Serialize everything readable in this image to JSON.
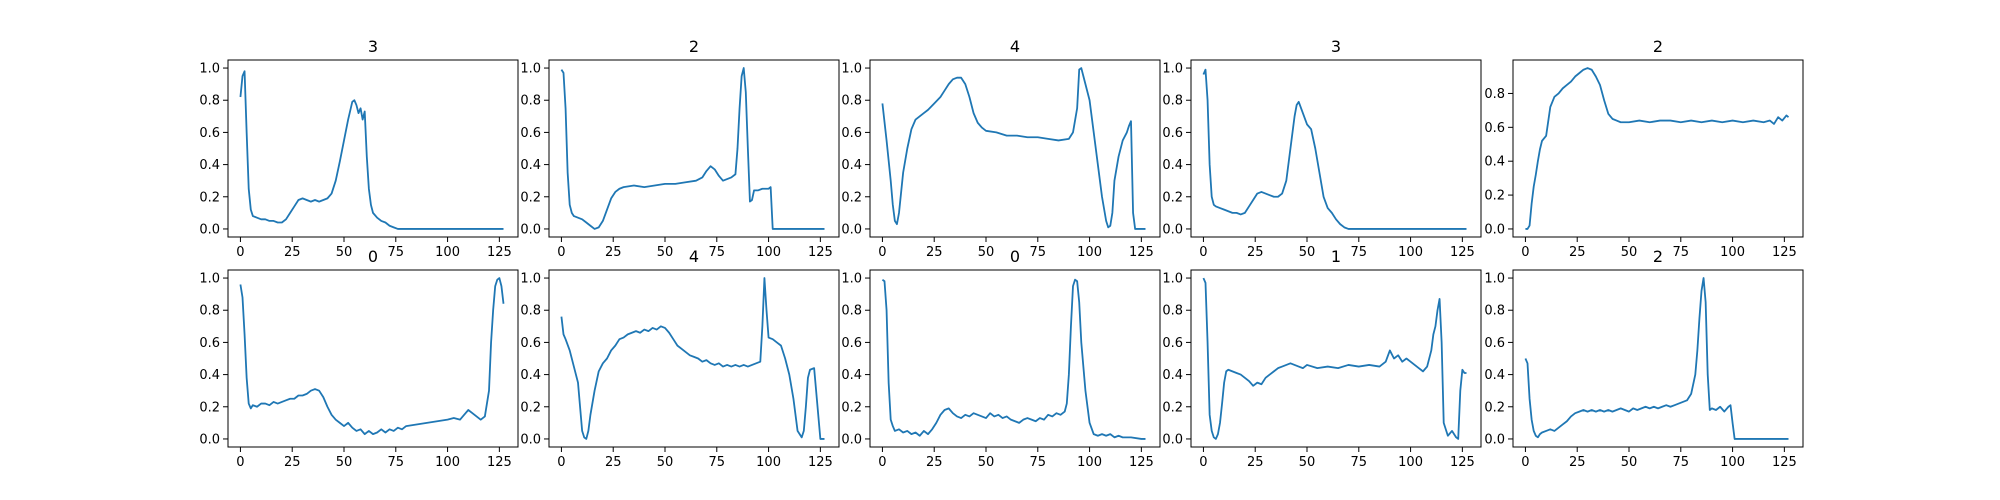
{
  "figure": {
    "background": "#ffffff",
    "line_color": "#1f77b4",
    "axis_color": "#000000"
  },
  "chart_data": [
    {
      "type": "line",
      "title": "3",
      "xlabel": "",
      "ylabel": "",
      "xlim": [
        -6,
        134
      ],
      "ylim": [
        -0.05,
        1.05
      ],
      "xticks": [
        0,
        25,
        50,
        75,
        100,
        125
      ],
      "yticks": [
        0.0,
        0.2,
        0.4,
        0.6,
        0.8,
        1.0
      ],
      "grid": false,
      "x": [
        0,
        1,
        2,
        3,
        4,
        5,
        6,
        8,
        10,
        12,
        14,
        16,
        18,
        20,
        22,
        24,
        26,
        28,
        30,
        32,
        34,
        36,
        38,
        40,
        42,
        44,
        46,
        48,
        50,
        52,
        54,
        55,
        56,
        57,
        58,
        59,
        60,
        61,
        62,
        63,
        64,
        66,
        68,
        70,
        72,
        74,
        76,
        80,
        90,
        100,
        110,
        120,
        127
      ],
      "y": [
        0.82,
        0.95,
        0.98,
        0.6,
        0.25,
        0.12,
        0.08,
        0.07,
        0.06,
        0.06,
        0.05,
        0.05,
        0.04,
        0.04,
        0.06,
        0.1,
        0.14,
        0.18,
        0.19,
        0.18,
        0.17,
        0.18,
        0.17,
        0.18,
        0.19,
        0.22,
        0.3,
        0.42,
        0.55,
        0.68,
        0.79,
        0.8,
        0.77,
        0.72,
        0.75,
        0.68,
        0.73,
        0.45,
        0.25,
        0.15,
        0.1,
        0.07,
        0.05,
        0.04,
        0.02,
        0.01,
        0.0,
        0.0,
        0.0,
        0.0,
        0.0,
        0.0,
        0.0
      ]
    },
    {
      "type": "line",
      "title": "2",
      "xlabel": "",
      "ylabel": "",
      "xlim": [
        -6,
        134
      ],
      "ylim": [
        -0.05,
        1.05
      ],
      "xticks": [
        0,
        25,
        50,
        75,
        100,
        125
      ],
      "yticks": [
        0.0,
        0.2,
        0.4,
        0.6,
        0.8,
        1.0
      ],
      "grid": false,
      "x": [
        0,
        1,
        2,
        3,
        4,
        5,
        6,
        8,
        10,
        12,
        14,
        16,
        18,
        20,
        22,
        24,
        26,
        28,
        30,
        35,
        40,
        45,
        50,
        55,
        60,
        65,
        68,
        70,
        72,
        74,
        76,
        78,
        80,
        82,
        84,
        85,
        86,
        87,
        88,
        89,
        90,
        91,
        92,
        93,
        95,
        97,
        100,
        101,
        102,
        103,
        110,
        120,
        127
      ],
      "y": [
        0.99,
        0.97,
        0.75,
        0.35,
        0.15,
        0.1,
        0.08,
        0.07,
        0.06,
        0.04,
        0.02,
        0.0,
        0.01,
        0.05,
        0.12,
        0.19,
        0.23,
        0.25,
        0.26,
        0.27,
        0.26,
        0.27,
        0.28,
        0.28,
        0.29,
        0.3,
        0.32,
        0.36,
        0.39,
        0.37,
        0.33,
        0.3,
        0.31,
        0.32,
        0.34,
        0.5,
        0.75,
        0.95,
        1.0,
        0.85,
        0.5,
        0.17,
        0.18,
        0.24,
        0.24,
        0.25,
        0.25,
        0.26,
        0.0,
        0.0,
        0.0,
        0.0,
        0.0
      ]
    },
    {
      "type": "line",
      "title": "4",
      "xlabel": "",
      "ylabel": "",
      "xlim": [
        -6,
        134
      ],
      "ylim": [
        -0.05,
        1.05
      ],
      "xticks": [
        0,
        25,
        50,
        75,
        100,
        125
      ],
      "yticks": [
        0.0,
        0.2,
        0.4,
        0.6,
        0.8,
        1.0
      ],
      "grid": false,
      "x": [
        0,
        2,
        4,
        5,
        6,
        7,
        8,
        10,
        12,
        14,
        16,
        18,
        20,
        22,
        25,
        28,
        30,
        32,
        34,
        36,
        38,
        40,
        42,
        44,
        46,
        48,
        50,
        55,
        60,
        65,
        70,
        75,
        80,
        85,
        90,
        92,
        94,
        95,
        96,
        97,
        98,
        100,
        102,
        104,
        106,
        108,
        109,
        110,
        111,
        112,
        114,
        116,
        118,
        119,
        120,
        121,
        122,
        125,
        127
      ],
      "y": [
        0.78,
        0.55,
        0.3,
        0.15,
        0.05,
        0.03,
        0.1,
        0.35,
        0.5,
        0.62,
        0.68,
        0.7,
        0.72,
        0.74,
        0.78,
        0.82,
        0.86,
        0.9,
        0.93,
        0.94,
        0.94,
        0.9,
        0.82,
        0.72,
        0.66,
        0.63,
        0.61,
        0.6,
        0.58,
        0.58,
        0.57,
        0.57,
        0.56,
        0.55,
        0.56,
        0.6,
        0.75,
        0.99,
        1.0,
        0.95,
        0.9,
        0.8,
        0.6,
        0.4,
        0.2,
        0.05,
        0.01,
        0.02,
        0.1,
        0.3,
        0.45,
        0.55,
        0.6,
        0.64,
        0.67,
        0.1,
        0.0,
        0.0,
        0.0
      ]
    },
    {
      "type": "line",
      "title": "3",
      "xlabel": "",
      "ylabel": "",
      "xlim": [
        -6,
        134
      ],
      "ylim": [
        -0.05,
        1.05
      ],
      "xticks": [
        0,
        25,
        50,
        75,
        100,
        125
      ],
      "yticks": [
        0.0,
        0.2,
        0.4,
        0.6,
        0.8,
        1.0
      ],
      "grid": false,
      "x": [
        0,
        1,
        2,
        3,
        4,
        5,
        6,
        8,
        10,
        12,
        14,
        16,
        18,
        20,
        22,
        24,
        26,
        28,
        30,
        32,
        34,
        36,
        38,
        40,
        42,
        44,
        45,
        46,
        48,
        50,
        52,
        54,
        56,
        58,
        60,
        62,
        64,
        66,
        68,
        70,
        80,
        100,
        127
      ],
      "y": [
        0.96,
        0.99,
        0.8,
        0.4,
        0.2,
        0.15,
        0.14,
        0.13,
        0.12,
        0.11,
        0.1,
        0.1,
        0.09,
        0.1,
        0.14,
        0.18,
        0.22,
        0.23,
        0.22,
        0.21,
        0.2,
        0.2,
        0.22,
        0.3,
        0.5,
        0.7,
        0.77,
        0.79,
        0.72,
        0.65,
        0.62,
        0.5,
        0.35,
        0.2,
        0.13,
        0.1,
        0.06,
        0.03,
        0.01,
        0.0,
        0.0,
        0.0,
        0.0
      ]
    },
    {
      "type": "line",
      "title": "2",
      "xlabel": "",
      "ylabel": "",
      "xlim": [
        -6,
        134
      ],
      "ylim": [
        -0.0475,
        0.9975
      ],
      "xticks": [
        0,
        25,
        50,
        75,
        100,
        125
      ],
      "yticks": [
        0.0,
        0.2,
        0.4,
        0.6,
        0.8
      ],
      "grid": false,
      "x": [
        0,
        1,
        2,
        3,
        4,
        5,
        6,
        7,
        8,
        10,
        12,
        14,
        16,
        18,
        20,
        22,
        24,
        26,
        28,
        30,
        32,
        34,
        36,
        38,
        40,
        42,
        44,
        46,
        50,
        55,
        60,
        65,
        70,
        75,
        80,
        85,
        90,
        95,
        100,
        105,
        110,
        115,
        118,
        120,
        122,
        124,
        126,
        127
      ],
      "y": [
        0.0,
        0.0,
        0.02,
        0.15,
        0.25,
        0.32,
        0.4,
        0.47,
        0.52,
        0.55,
        0.72,
        0.78,
        0.8,
        0.83,
        0.85,
        0.87,
        0.9,
        0.92,
        0.94,
        0.95,
        0.94,
        0.9,
        0.85,
        0.76,
        0.68,
        0.65,
        0.64,
        0.63,
        0.63,
        0.64,
        0.63,
        0.64,
        0.64,
        0.63,
        0.64,
        0.63,
        0.64,
        0.63,
        0.64,
        0.63,
        0.64,
        0.63,
        0.64,
        0.62,
        0.66,
        0.64,
        0.67,
        0.66
      ]
    },
    {
      "type": "line",
      "title": "0",
      "xlabel": "",
      "ylabel": "",
      "xlim": [
        -6,
        134
      ],
      "ylim": [
        -0.05,
        1.05
      ],
      "xticks": [
        0,
        25,
        50,
        75,
        100,
        125
      ],
      "yticks": [
        0.0,
        0.2,
        0.4,
        0.6,
        0.8,
        1.0
      ],
      "grid": false,
      "x": [
        0,
        1,
        2,
        3,
        4,
        5,
        6,
        8,
        10,
        12,
        14,
        16,
        18,
        20,
        22,
        24,
        26,
        28,
        30,
        32,
        34,
        36,
        38,
        40,
        42,
        44,
        46,
        48,
        50,
        52,
        54,
        56,
        58,
        60,
        62,
        64,
        66,
        68,
        70,
        72,
        74,
        76,
        78,
        80,
        85,
        90,
        95,
        100,
        103,
        106,
        108,
        110,
        112,
        114,
        116,
        118,
        120,
        121,
        122,
        123,
        124,
        125,
        126,
        127
      ],
      "y": [
        0.96,
        0.88,
        0.65,
        0.38,
        0.22,
        0.19,
        0.21,
        0.2,
        0.22,
        0.22,
        0.21,
        0.23,
        0.22,
        0.23,
        0.24,
        0.25,
        0.25,
        0.27,
        0.27,
        0.28,
        0.3,
        0.31,
        0.3,
        0.26,
        0.2,
        0.15,
        0.12,
        0.1,
        0.08,
        0.1,
        0.07,
        0.05,
        0.06,
        0.03,
        0.05,
        0.03,
        0.04,
        0.06,
        0.04,
        0.06,
        0.05,
        0.07,
        0.06,
        0.08,
        0.09,
        0.1,
        0.11,
        0.12,
        0.13,
        0.12,
        0.15,
        0.18,
        0.16,
        0.14,
        0.12,
        0.14,
        0.3,
        0.6,
        0.8,
        0.95,
        0.99,
        1.0,
        0.95,
        0.84
      ]
    },
    {
      "type": "line",
      "title": "4",
      "xlabel": "",
      "ylabel": "",
      "xlim": [
        -6,
        134
      ],
      "ylim": [
        -0.05,
        1.05
      ],
      "xticks": [
        0,
        25,
        50,
        75,
        100,
        125
      ],
      "yticks": [
        0.0,
        0.2,
        0.4,
        0.6,
        0.8,
        1.0
      ],
      "grid": false,
      "x": [
        0,
        1,
        2,
        4,
        6,
        8,
        9,
        10,
        11,
        12,
        13,
        14,
        16,
        18,
        20,
        22,
        24,
        26,
        28,
        30,
        32,
        34,
        36,
        38,
        40,
        42,
        44,
        46,
        48,
        50,
        52,
        54,
        56,
        58,
        60,
        62,
        64,
        66,
        68,
        70,
        72,
        74,
        76,
        78,
        80,
        82,
        84,
        86,
        88,
        90,
        92,
        94,
        96,
        97,
        98,
        99,
        100,
        102,
        104,
        106,
        108,
        110,
        112,
        114,
        116,
        117,
        118,
        119,
        120,
        122,
        125,
        127
      ],
      "y": [
        0.76,
        0.65,
        0.62,
        0.55,
        0.45,
        0.35,
        0.2,
        0.05,
        0.01,
        0.0,
        0.05,
        0.15,
        0.3,
        0.42,
        0.47,
        0.5,
        0.55,
        0.58,
        0.62,
        0.63,
        0.65,
        0.66,
        0.67,
        0.66,
        0.68,
        0.67,
        0.69,
        0.68,
        0.7,
        0.69,
        0.66,
        0.62,
        0.58,
        0.56,
        0.54,
        0.52,
        0.51,
        0.5,
        0.48,
        0.49,
        0.47,
        0.46,
        0.47,
        0.45,
        0.46,
        0.45,
        0.46,
        0.45,
        0.46,
        0.45,
        0.46,
        0.47,
        0.48,
        0.7,
        1.0,
        0.8,
        0.63,
        0.62,
        0.6,
        0.58,
        0.5,
        0.4,
        0.25,
        0.05,
        0.01,
        0.05,
        0.2,
        0.38,
        0.43,
        0.44,
        0.0,
        0.0
      ]
    },
    {
      "type": "line",
      "title": "0",
      "xlabel": "",
      "ylabel": "",
      "xlim": [
        -6,
        134
      ],
      "ylim": [
        -0.05,
        1.05
      ],
      "xticks": [
        0,
        25,
        50,
        75,
        100,
        125
      ],
      "yticks": [
        0.0,
        0.2,
        0.4,
        0.6,
        0.8,
        1.0
      ],
      "grid": false,
      "x": [
        0,
        1,
        2,
        3,
        4,
        5,
        6,
        8,
        10,
        12,
        14,
        16,
        18,
        20,
        22,
        24,
        26,
        28,
        30,
        32,
        34,
        36,
        38,
        40,
        42,
        44,
        46,
        48,
        50,
        52,
        54,
        56,
        58,
        60,
        62,
        64,
        66,
        68,
        70,
        72,
        74,
        76,
        78,
        80,
        82,
        84,
        86,
        88,
        89,
        90,
        91,
        92,
        93,
        94,
        95,
        96,
        98,
        100,
        102,
        104,
        106,
        108,
        110,
        112,
        114,
        116,
        120,
        125,
        127
      ],
      "y": [
        0.99,
        0.98,
        0.8,
        0.35,
        0.12,
        0.08,
        0.05,
        0.06,
        0.04,
        0.05,
        0.03,
        0.04,
        0.02,
        0.05,
        0.03,
        0.06,
        0.1,
        0.15,
        0.18,
        0.19,
        0.16,
        0.14,
        0.13,
        0.15,
        0.14,
        0.16,
        0.15,
        0.14,
        0.13,
        0.16,
        0.14,
        0.15,
        0.13,
        0.14,
        0.12,
        0.11,
        0.1,
        0.12,
        0.13,
        0.12,
        0.11,
        0.13,
        0.12,
        0.15,
        0.14,
        0.16,
        0.15,
        0.17,
        0.22,
        0.4,
        0.7,
        0.95,
        0.99,
        0.98,
        0.85,
        0.6,
        0.3,
        0.1,
        0.03,
        0.02,
        0.03,
        0.02,
        0.03,
        0.01,
        0.02,
        0.01,
        0.01,
        0.0,
        0.0
      ]
    },
    {
      "type": "line",
      "title": "1",
      "xlabel": "",
      "ylabel": "",
      "xlim": [
        -6,
        134
      ],
      "ylim": [
        -0.05,
        1.05
      ],
      "xticks": [
        0,
        25,
        50,
        75,
        100,
        125
      ],
      "yticks": [
        0.0,
        0.2,
        0.4,
        0.6,
        0.8,
        1.0
      ],
      "grid": false,
      "x": [
        0,
        1,
        2,
        3,
        4,
        5,
        6,
        7,
        8,
        9,
        10,
        11,
        12,
        14,
        16,
        18,
        20,
        22,
        24,
        26,
        28,
        30,
        32,
        34,
        36,
        38,
        40,
        42,
        44,
        46,
        48,
        50,
        55,
        60,
        65,
        70,
        75,
        80,
        85,
        88,
        90,
        92,
        94,
        96,
        98,
        100,
        102,
        104,
        106,
        108,
        110,
        111,
        112,
        113,
        114,
        115,
        116,
        118,
        120,
        122,
        123,
        124,
        125,
        126,
        127
      ],
      "y": [
        1.0,
        0.97,
        0.6,
        0.15,
        0.05,
        0.01,
        0.0,
        0.03,
        0.1,
        0.22,
        0.35,
        0.42,
        0.43,
        0.42,
        0.41,
        0.4,
        0.38,
        0.36,
        0.33,
        0.35,
        0.34,
        0.38,
        0.4,
        0.42,
        0.44,
        0.45,
        0.46,
        0.47,
        0.46,
        0.45,
        0.44,
        0.46,
        0.44,
        0.45,
        0.44,
        0.46,
        0.45,
        0.46,
        0.45,
        0.48,
        0.55,
        0.5,
        0.52,
        0.48,
        0.5,
        0.48,
        0.46,
        0.44,
        0.42,
        0.45,
        0.55,
        0.65,
        0.7,
        0.8,
        0.87,
        0.6,
        0.1,
        0.02,
        0.05,
        0.01,
        0.0,
        0.3,
        0.43,
        0.41,
        0.41
      ]
    },
    {
      "type": "line",
      "title": "2",
      "xlabel": "",
      "ylabel": "",
      "xlim": [
        -6,
        134
      ],
      "ylim": [
        -0.05,
        1.05
      ],
      "xticks": [
        0,
        25,
        50,
        75,
        100,
        125
      ],
      "yticks": [
        0.0,
        0.2,
        0.4,
        0.6,
        0.8,
        1.0
      ],
      "grid": false,
      "x": [
        0,
        1,
        2,
        3,
        4,
        5,
        6,
        7,
        8,
        10,
        12,
        14,
        16,
        18,
        20,
        22,
        24,
        26,
        28,
        30,
        32,
        34,
        36,
        38,
        40,
        42,
        44,
        46,
        48,
        50,
        52,
        54,
        56,
        58,
        60,
        62,
        64,
        66,
        68,
        70,
        72,
        74,
        76,
        78,
        80,
        82,
        83,
        84,
        85,
        86,
        87,
        88,
        89,
        90,
        92,
        94,
        96,
        98,
        99,
        100,
        101,
        110,
        120,
        127
      ],
      "y": [
        0.5,
        0.47,
        0.25,
        0.12,
        0.05,
        0.02,
        0.01,
        0.03,
        0.04,
        0.05,
        0.06,
        0.05,
        0.07,
        0.09,
        0.11,
        0.14,
        0.16,
        0.17,
        0.18,
        0.17,
        0.18,
        0.17,
        0.18,
        0.17,
        0.18,
        0.17,
        0.18,
        0.19,
        0.18,
        0.17,
        0.19,
        0.18,
        0.19,
        0.2,
        0.19,
        0.2,
        0.19,
        0.2,
        0.21,
        0.2,
        0.21,
        0.22,
        0.23,
        0.24,
        0.28,
        0.4,
        0.55,
        0.75,
        0.92,
        1.0,
        0.85,
        0.4,
        0.18,
        0.19,
        0.18,
        0.2,
        0.17,
        0.2,
        0.21,
        0.1,
        0.0,
        0.0,
        0.0,
        0.0
      ]
    }
  ]
}
